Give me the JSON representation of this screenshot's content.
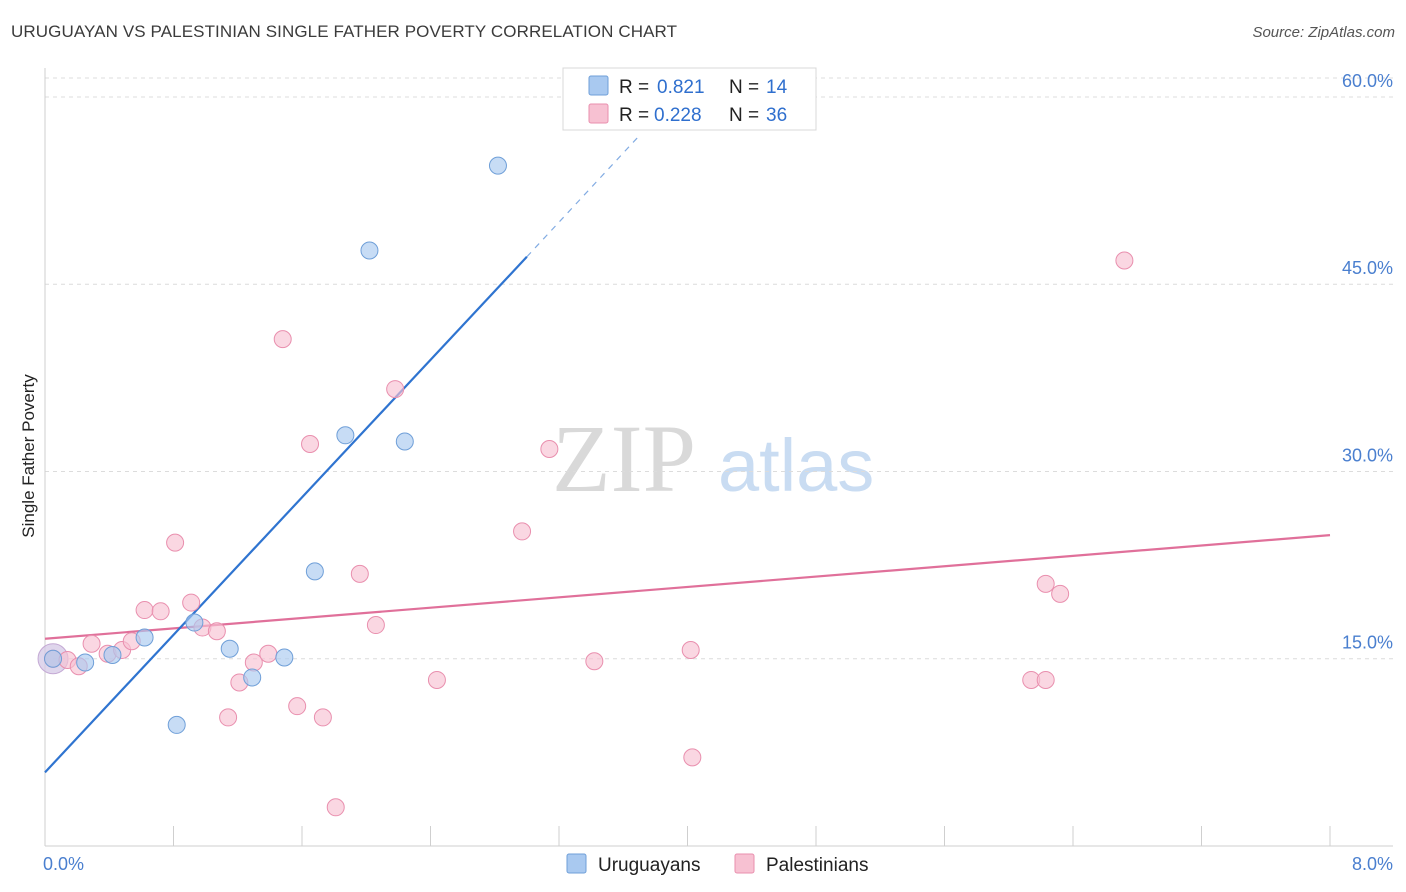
{
  "header": {
    "title": "URUGUAYAN VS PALESTINIAN SINGLE FATHER POVERTY CORRELATION CHART",
    "source": "Source: ZipAtlas.com"
  },
  "watermark": {
    "zip": "ZIP",
    "atlas": "atlas"
  },
  "legend": {
    "rows": [
      {
        "r_label": "R =",
        "r_value": "0.821",
        "n_label": "N =",
        "n_value": "14",
        "color": "#a9c9f0",
        "stroke": "#6f9fd8"
      },
      {
        "r_label": "R =",
        "r_value": "0.228",
        "n_label": "N =",
        "n_value": "36",
        "color": "#f7c1d2",
        "stroke": "#e98fae"
      }
    ]
  },
  "bottom_legend": [
    "Uruguayans",
    "Palestinians"
  ],
  "chart_data": {
    "type": "scatter",
    "title": "URUGUAYAN VS PALESTINIAN SINGLE FATHER POVERTY CORRELATION CHART",
    "xlabel": "",
    "ylabel": "Single Father Poverty",
    "xlim": [
      0,
      8
    ],
    "ylim": [
      0,
      62
    ],
    "x_tick_labels": [
      "0.0%",
      "8.0%"
    ],
    "y_ticks": [
      15,
      30,
      45,
      60
    ],
    "y_tick_labels": [
      "15.0%",
      "30.0%",
      "45.0%",
      "60.0%"
    ],
    "grid": "horizontal dashed",
    "legend_position": "top-center",
    "series": [
      {
        "name": "Uruguayans",
        "color": "#a9c9f0",
        "stroke": "#6f9fd8",
        "line_color": "#2f74d0",
        "points": [
          [
            0.05,
            15.0
          ],
          [
            0.25,
            14.7
          ],
          [
            0.42,
            15.3
          ],
          [
            0.62,
            16.7
          ],
          [
            0.82,
            9.7
          ],
          [
            0.93,
            17.9
          ],
          [
            1.15,
            15.8
          ],
          [
            1.29,
            13.5
          ],
          [
            1.49,
            15.1
          ],
          [
            1.68,
            22.0
          ],
          [
            1.87,
            32.9
          ],
          [
            2.02,
            47.7
          ],
          [
            2.24,
            32.4
          ],
          [
            2.82,
            54.5
          ]
        ],
        "trend": {
          "x0": 0,
          "y0": 5.9,
          "x1": 3.0,
          "y1": 47.2,
          "dash_x1": 3.7,
          "dash_y1": 56.9
        }
      },
      {
        "name": "Palestinians",
        "color": "#f7c1d2",
        "stroke": "#e98fae",
        "line_color": "#e0709a",
        "points": [
          [
            0.05,
            15.0
          ],
          [
            0.14,
            14.9
          ],
          [
            0.21,
            14.4
          ],
          [
            0.29,
            16.2
          ],
          [
            0.39,
            15.4
          ],
          [
            0.48,
            15.7
          ],
          [
            0.54,
            16.4
          ],
          [
            0.62,
            18.9
          ],
          [
            0.72,
            18.8
          ],
          [
            0.81,
            24.3
          ],
          [
            0.91,
            19.5
          ],
          [
            0.98,
            17.5
          ],
          [
            1.07,
            17.2
          ],
          [
            1.14,
            10.3
          ],
          [
            1.21,
            13.1
          ],
          [
            1.3,
            14.7
          ],
          [
            1.39,
            15.4
          ],
          [
            1.48,
            40.6
          ],
          [
            1.57,
            11.2
          ],
          [
            1.65,
            32.2
          ],
          [
            1.73,
            10.3
          ],
          [
            1.81,
            3.1
          ],
          [
            1.96,
            21.8
          ],
          [
            2.06,
            17.7
          ],
          [
            2.18,
            36.6
          ],
          [
            2.44,
            13.3
          ],
          [
            2.97,
            25.2
          ],
          [
            3.14,
            31.8
          ],
          [
            3.42,
            14.8
          ],
          [
            4.03,
            7.1
          ],
          [
            4.02,
            15.7
          ],
          [
            6.14,
            13.3
          ],
          [
            6.23,
            13.3
          ],
          [
            6.23,
            21.0
          ],
          [
            6.32,
            20.2
          ],
          [
            6.72,
            46.9
          ]
        ],
        "trend": {
          "x0": 0,
          "y0": 16.6,
          "x1": 8.0,
          "y1": 24.9
        }
      }
    ]
  }
}
